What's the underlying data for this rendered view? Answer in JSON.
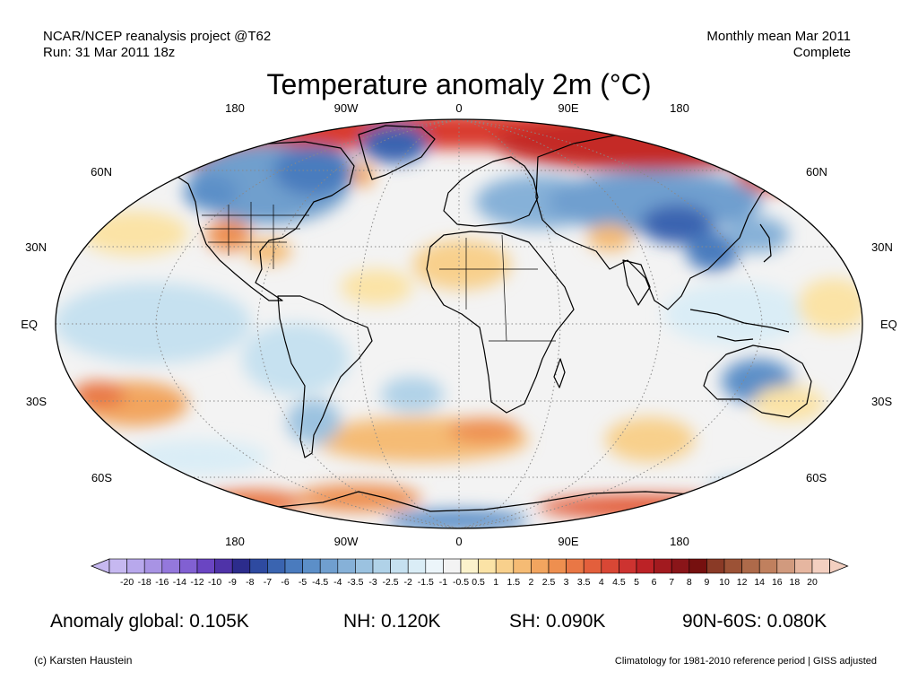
{
  "header": {
    "project": "NCAR/NCEP reanalysis project @T62",
    "run": "Run: 31 Mar 2011 18z",
    "period": "Monthly mean Mar 2011",
    "status": "Complete"
  },
  "title": "Temperature anomaly 2m (°C)",
  "map": {
    "lon_labels_top": [
      "180",
      "90W",
      "0",
      "90E",
      "180"
    ],
    "lon_labels_bottom": [
      "180",
      "90W",
      "0",
      "90E",
      "180"
    ],
    "lat_labels_left": [
      "60N",
      "30N",
      "EQ",
      "30S",
      "60S"
    ],
    "lat_labels_right": [
      "60N",
      "30N",
      "EQ",
      "30S",
      "60S"
    ]
  },
  "colorbar": {
    "labels": [
      "-20",
      "-18",
      "-16",
      "-14",
      "-12",
      "-10",
      "-9",
      "-8",
      "-7",
      "-6",
      "-5",
      "-4.5",
      "-4",
      "-3.5",
      "-3",
      "-2.5",
      "-2",
      "-1.5",
      "-1",
      "-0.5",
      "0.5",
      "1",
      "1.5",
      "2",
      "2.5",
      "3",
      "3.5",
      "4",
      "4.5",
      "5",
      "6",
      "7",
      "8",
      "9",
      "10",
      "12",
      "14",
      "16",
      "18",
      "20"
    ],
    "colors": [
      "#c6b8f0",
      "#b8a8ec",
      "#a893e4",
      "#9478dc",
      "#8160d2",
      "#6a45c2",
      "#4f33a8",
      "#2c2c8c",
      "#2e4aa0",
      "#3a64b0",
      "#4a7bbe",
      "#5c8fc8",
      "#709fcf",
      "#86b1d8",
      "#9bc2e0",
      "#b0d2e8",
      "#c6e1f0",
      "#daedf6",
      "#ecf5fa",
      "#f3f3f3",
      "#fbf2cc",
      "#fbe3a6",
      "#f8d08c",
      "#f5bb74",
      "#f2a55f",
      "#ee8f4f",
      "#e97745",
      "#e35f3c",
      "#d94735",
      "#cd3330",
      "#bc2226",
      "#a21a1f",
      "#8a1519",
      "#76100f",
      "#8a3a26",
      "#9c5236",
      "#ae6a4a",
      "#c0805e",
      "#d19a7e",
      "#e6b6a0",
      "#f3cfc0"
    ]
  },
  "stats": {
    "global": "Anomaly global: 0.105K",
    "nh": "NH: 0.120K",
    "sh": "SH: 0.090K",
    "polar": "90N-60S: 0.080K"
  },
  "footer": {
    "credit": "(c) Karsten Haustein",
    "note": "Climatology for 1981-2010 reference period | GISS adjusted"
  }
}
